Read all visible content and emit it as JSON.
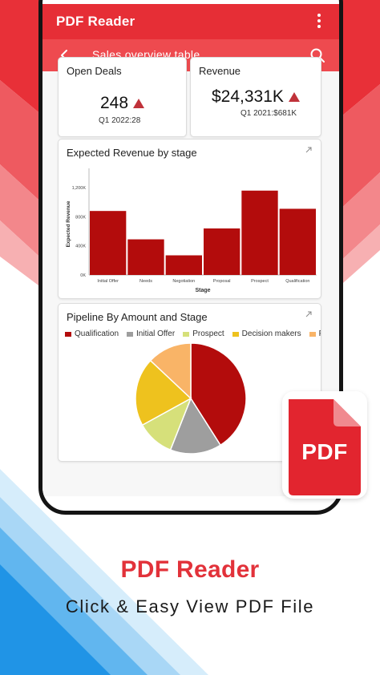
{
  "app": {
    "title": "PDF Reader",
    "menu_icon": "more-vertical-icon"
  },
  "toolbar": {
    "back_icon": "chevron-left-icon",
    "subtitle": "Sales overview table....",
    "search_icon": "search-icon"
  },
  "kpis": [
    {
      "title": "Open Deals",
      "value": "248",
      "sub": "Q1 2022:28",
      "trend_icon": "up-triangle-icon"
    },
    {
      "title": "Revenue",
      "value": "$24,331K",
      "sub": "Q1 2021:$681K",
      "trend_icon": "up-triangle-icon"
    }
  ],
  "colors": {
    "brand": "#e62e36",
    "subbar": "#ee4a4f",
    "bar": "#b30c0c",
    "trend": "#c0323a"
  },
  "charts": {
    "bar_card_title": "Expected Revenue by stage",
    "pie_card_title": "Pipeline By Amount and Stage",
    "expand_icon": "expand-arrow-icon"
  },
  "chart_data": [
    {
      "type": "bar",
      "title": "Expected Revenue by stage",
      "xlabel": "Stage",
      "ylabel": "Expected Revenue",
      "categories": [
        "Initial Offer",
        "Needs",
        "Negotiation",
        "Proposal",
        "Prospect",
        "Qualification"
      ],
      "values": [
        880,
        490,
        270,
        640,
        1160,
        910
      ],
      "yticks": [
        "0K",
        "400K",
        "800K",
        "1,200K"
      ],
      "ytick_values": [
        0,
        400,
        800,
        1200
      ],
      "ylim": [
        0,
        1400
      ],
      "grid": false
    },
    {
      "type": "pie",
      "title": "Pipeline By Amount and Stage",
      "legend_position": "top",
      "labels": [
        "Qualification",
        "Initial Offer",
        "Prospect",
        "Decision makers",
        "Prop"
      ],
      "values": [
        41,
        15,
        11,
        20,
        13
      ],
      "colors": [
        "#b30c0c",
        "#9e9e9e",
        "#d6e07a",
        "#eec21e",
        "#f9b467"
      ]
    }
  ],
  "badge": {
    "label": "PDF",
    "icon": "pdf-file-icon"
  },
  "hero": {
    "title": "PDF Reader",
    "subtitle": "Click & Easy View PDF File"
  }
}
